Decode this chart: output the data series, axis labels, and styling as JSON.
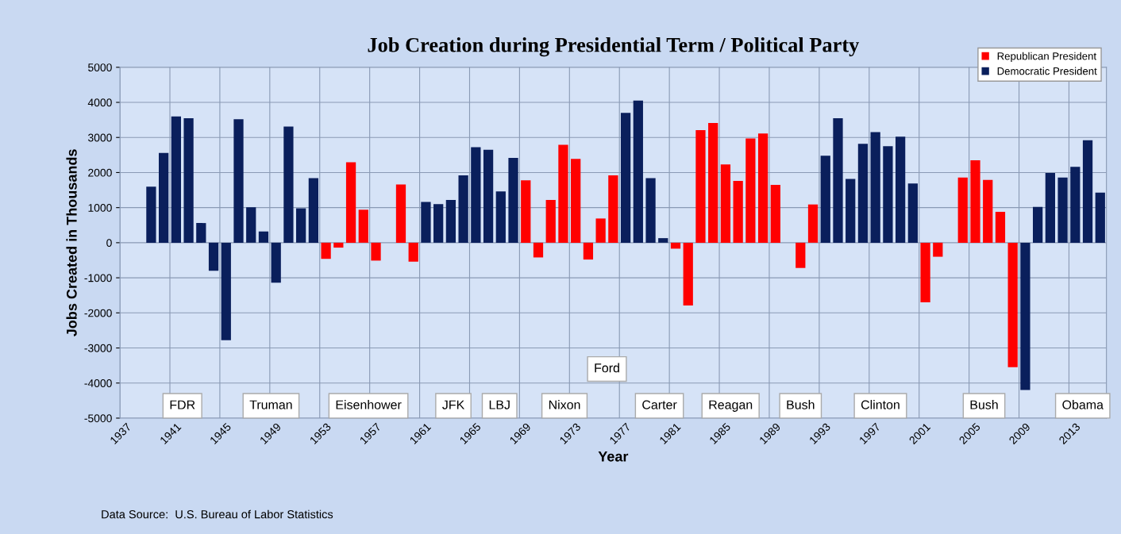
{
  "chart_data": {
    "type": "bar",
    "title": "Job Creation during Presidential Term / Political Party",
    "xlabel": "Year",
    "ylabel": "Jobs Created in Thousands",
    "categories": [
      "1937",
      null,
      null,
      null,
      "1941",
      null,
      null,
      null,
      "1945",
      null,
      null,
      null,
      "1949",
      null,
      null,
      null,
      "1953",
      null,
      null,
      null,
      "1957",
      null,
      null,
      null,
      "1961",
      null,
      null,
      null,
      "1965",
      null,
      null,
      null,
      "1969",
      null,
      null,
      null,
      "1973",
      null,
      null,
      null,
      "1977",
      null,
      null,
      null,
      "1981",
      null,
      null,
      null,
      "1985",
      null,
      null,
      null,
      "1989",
      null,
      null,
      null,
      "1993",
      null,
      null,
      null,
      "1997",
      null,
      null,
      null,
      "2001",
      null,
      null,
      null,
      "2005",
      null,
      null,
      null,
      "2009",
      null,
      null,
      null,
      "2013",
      null,
      null
    ],
    "series": [
      {
        "name": "Republican President",
        "color": "#ff0000",
        "values": [
          null,
          null,
          null,
          null,
          null,
          null,
          null,
          null,
          null,
          null,
          null,
          null,
          null,
          null,
          null,
          null,
          -460,
          -140,
          2290,
          940,
          -510,
          0,
          1660,
          -540,
          null,
          null,
          null,
          null,
          null,
          null,
          null,
          null,
          1780,
          -420,
          1220,
          2790,
          2390,
          -480,
          690,
          1920,
          null,
          null,
          null,
          null,
          -170,
          -1790,
          3210,
          3410,
          2230,
          1760,
          2970,
          3110,
          1650,
          0,
          -720,
          1090,
          null,
          null,
          null,
          null,
          null,
          null,
          null,
          null,
          -1700,
          -400,
          0,
          1860,
          2350,
          1790,
          880,
          -3550,
          null,
          null,
          null,
          null,
          null,
          null,
          null
        ]
      },
      {
        "name": "Democratic President",
        "color": "#0a1f5c",
        "values": [
          null,
          null,
          1600,
          2560,
          3600,
          3550,
          560,
          -800,
          -2780,
          3520,
          1010,
          320,
          -1140,
          3310,
          980,
          1840,
          null,
          null,
          null,
          null,
          null,
          null,
          null,
          null,
          1160,
          1100,
          1220,
          1920,
          2720,
          2650,
          1460,
          2420,
          null,
          null,
          null,
          null,
          null,
          null,
          null,
          null,
          3700,
          4050,
          1840,
          130,
          null,
          null,
          null,
          null,
          null,
          null,
          null,
          null,
          null,
          null,
          null,
          null,
          2480,
          3550,
          1820,
          2820,
          3150,
          2750,
          3020,
          1690,
          null,
          null,
          null,
          null,
          null,
          null,
          null,
          null,
          -4200,
          1020,
          1990,
          1860,
          2160,
          2920,
          1430
        ]
      }
    ],
    "ylim": [
      -5000,
      5000
    ],
    "yticks": [
      -5000,
      -4000,
      -3000,
      -2000,
      -1000,
      0,
      1000,
      2000,
      3000,
      4000,
      5000
    ],
    "grid": true,
    "legend": "top right",
    "annotations": [
      "FDR",
      "Truman",
      "Eisenhower",
      "JFK",
      "LBJ",
      "Nixon",
      "Ford",
      "Carter",
      "Reagan",
      "Bush",
      "Clinton",
      "Bush",
      "Obama",
      "Data Source:  U.S. Bureau of Labor Statistics"
    ]
  }
}
